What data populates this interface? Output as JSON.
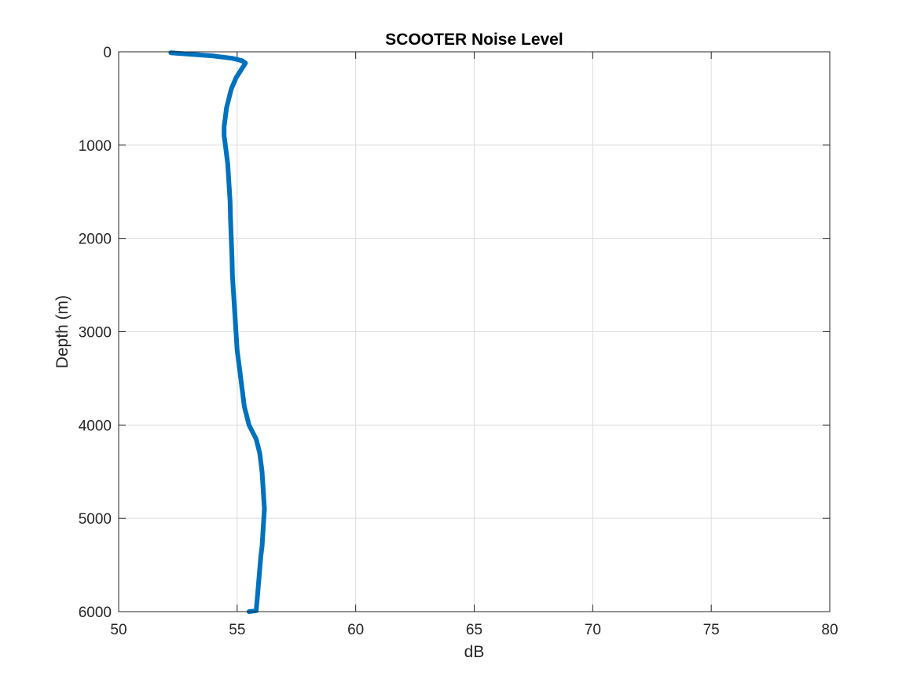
{
  "chart_data": {
    "type": "line",
    "title": "SCOOTER Noise Level",
    "xlabel": "dB",
    "ylabel": "Depth (m)",
    "xlim": [
      50,
      80
    ],
    "ylim": [
      0,
      6000
    ],
    "y_reversed": true,
    "grid": true,
    "xticks": [
      50,
      55,
      60,
      65,
      70,
      75,
      80
    ],
    "yticks": [
      0,
      1000,
      2000,
      3000,
      4000,
      5000,
      6000
    ],
    "series": [
      {
        "color": "#0072BD",
        "x": [
          52.2,
          53.0,
          54.0,
          54.8,
          55.2,
          55.35,
          55.2,
          54.95,
          54.75,
          54.65,
          54.55,
          54.5,
          54.45,
          54.45,
          54.5,
          54.55,
          54.6,
          54.65,
          54.7,
          54.72,
          54.75,
          54.78,
          54.8,
          54.85,
          54.9,
          54.95,
          55.0,
          55.1,
          55.2,
          55.3,
          55.5,
          55.8,
          55.95,
          56.05,
          56.1,
          56.15,
          56.1,
          56.05,
          56.0,
          55.95,
          55.9,
          55.85,
          55.8,
          55.5
        ],
        "y": [
          10,
          25,
          45,
          70,
          95,
          120,
          180,
          280,
          400,
          500,
          600,
          700,
          800,
          900,
          1000,
          1100,
          1200,
          1400,
          1600,
          1800,
          2000,
          2200,
          2400,
          2600,
          2800,
          3000,
          3200,
          3400,
          3600,
          3800,
          4000,
          4150,
          4300,
          4500,
          4700,
          4900,
          5100,
          5300,
          5400,
          5550,
          5700,
          5850,
          5990,
          6000
        ]
      }
    ]
  }
}
